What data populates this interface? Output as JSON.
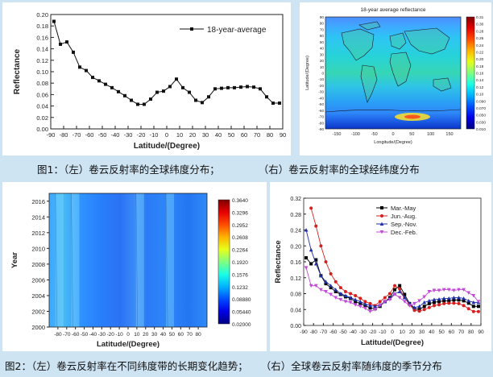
{
  "captions": {
    "fig1_left": "图1：（左）卷云反射率的全球纬度分布；",
    "fig1_right": "（右）卷云反射率的全球经纬度分布",
    "fig2_left": "图2：（左）卷云反射率在不同纬度带的长期变化趋势；",
    "fig2_right": "（右）全球卷云反射率随纬度的季节分布"
  },
  "chart_data": [
    {
      "type": "line",
      "title": "",
      "xlabel": "Latitude/(Degree)",
      "ylabel": "Reflectance",
      "xlim": [
        -90,
        90
      ],
      "ylim": [
        0.0,
        0.2
      ],
      "xticks": [
        -90,
        -80,
        -70,
        -60,
        -50,
        -40,
        -30,
        -20,
        -10,
        0,
        10,
        20,
        30,
        40,
        50,
        60,
        70,
        80,
        90
      ],
      "xtick_labels": [
        "-90",
        "-80",
        "-70",
        "-60",
        "-50",
        "-40",
        "-30",
        "-20",
        "-10",
        "0",
        "10",
        "20",
        "30",
        "40",
        "50",
        "60",
        "70",
        "80",
        "90"
      ],
      "yticks": [
        0.0,
        0.02,
        0.04,
        0.06,
        0.08,
        0.1,
        0.12,
        0.14,
        0.16,
        0.18,
        0.2
      ],
      "ytick_labels": [
        "0.00",
        "0.02",
        "0.04",
        "0.06",
        "0.08",
        "0.10",
        "0.12",
        "0.14",
        "0.16",
        "0.18",
        "0.20"
      ],
      "legend_position": "top-right",
      "series": [
        {
          "name": "18-year-average",
          "color": "#111111",
          "x": [
            -87.5,
            -82.5,
            -77.5,
            -72.5,
            -67.5,
            -62.5,
            -57.5,
            -52.5,
            -47.5,
            -42.5,
            -37.5,
            -32.5,
            -27.5,
            -22.5,
            -17.5,
            -12.5,
            -7.5,
            -2.5,
            2.5,
            7.5,
            12.5,
            17.5,
            22.5,
            27.5,
            32.5,
            37.5,
            42.5,
            47.5,
            52.5,
            57.5,
            62.5,
            67.5,
            72.5,
            77.5,
            82.5,
            87.5
          ],
          "y": [
            0.188,
            0.148,
            0.152,
            0.134,
            0.108,
            0.102,
            0.09,
            0.084,
            0.078,
            0.072,
            0.065,
            0.058,
            0.05,
            0.043,
            0.043,
            0.052,
            0.064,
            0.066,
            0.074,
            0.087,
            0.072,
            0.064,
            0.05,
            0.046,
            0.056,
            0.07,
            0.071,
            0.072,
            0.072,
            0.073,
            0.074,
            0.073,
            0.07,
            0.056,
            0.045,
            0.045
          ]
        }
      ]
    },
    {
      "type": "heatmap",
      "title": "18-year average reflectance",
      "xlabel": "Longitude/(Degree)",
      "ylabel": "Latitude/(Degree)",
      "xlim": [
        -180,
        180
      ],
      "ylim": [
        -90,
        90
      ],
      "xtick_labels": [
        "-150",
        "-100",
        "-50",
        "0",
        "50",
        "100",
        "150"
      ],
      "ytick_labels": [
        "-90",
        "-80",
        "-70",
        "-60",
        "-50",
        "-40",
        "-30",
        "-20",
        "-10",
        "0",
        "10",
        "20",
        "30",
        "40",
        "50",
        "60",
        "70",
        "80",
        "90"
      ],
      "colorbar_labels": [
        "0.31",
        "0.30",
        "0.28",
        "0.26",
        "0.24",
        "0.22",
        "0.20",
        "0.18",
        "0.16",
        "0.14",
        "0.12",
        "0.10",
        "0.090",
        "0.070",
        "0.050",
        "0.030",
        "0.010"
      ],
      "colorbar_range": [
        0.01,
        0.31
      ]
    },
    {
      "type": "heatmap",
      "title": "",
      "xlabel": "Latitude/(Degree)",
      "ylabel": "Year",
      "xlim": [
        -90,
        90
      ],
      "ylim": [
        2000,
        2017
      ],
      "xtick_labels": [
        "-80",
        "-70",
        "-60",
        "-50",
        "-40",
        "-30",
        "-20",
        "-10",
        "0",
        "10",
        "20",
        "30",
        "40",
        "50",
        "60",
        "70",
        "80"
      ],
      "ytick_labels": [
        "2000",
        "2002",
        "2004",
        "2006",
        "2008",
        "2010",
        "2012",
        "2014",
        "2016"
      ],
      "colorbar_labels": [
        "0.3640",
        "0.3296",
        "0.2952",
        "0.2608",
        "0.2264",
        "0.1920",
        "0.1576",
        "0.1232",
        "0.08880",
        "0.05440",
        "0.02000"
      ],
      "colorbar_range": [
        0.02,
        0.364
      ]
    },
    {
      "type": "line",
      "title": "",
      "xlabel": "Latitude/(Degree)",
      "ylabel": "Reflectance",
      "xlim": [
        -90,
        90
      ],
      "ylim": [
        0.0,
        0.32
      ],
      "xtick_labels": [
        "-90",
        "-80",
        "-70",
        "-60",
        "-50",
        "-40",
        "-30",
        "-20",
        "-10",
        "0",
        "10",
        "20",
        "30",
        "40",
        "50",
        "60",
        "70",
        "80",
        "90"
      ],
      "ytick_labels": [
        "0.00",
        "0.04",
        "0.08",
        "0.12",
        "0.16",
        "0.20",
        "0.24",
        "0.28",
        "0.32"
      ],
      "legend_position": "top-center",
      "series": [
        {
          "name": "Mar.-May",
          "color": "#000000",
          "marker": "square",
          "x": [
            -87.5,
            -82.5,
            -77.5,
            -72.5,
            -67.5,
            -62.5,
            -57.5,
            -52.5,
            -47.5,
            -42.5,
            -37.5,
            -32.5,
            -27.5,
            -22.5,
            -17.5,
            -12.5,
            -7.5,
            -2.5,
            2.5,
            7.5,
            12.5,
            17.5,
            22.5,
            27.5,
            32.5,
            37.5,
            42.5,
            47.5,
            52.5,
            57.5,
            62.5,
            67.5,
            72.5,
            77.5,
            82.5,
            87.5
          ],
          "y": [
            0.17,
            0.155,
            0.165,
            0.125,
            0.105,
            0.095,
            0.085,
            0.078,
            0.072,
            0.068,
            0.06,
            0.055,
            0.05,
            0.044,
            0.042,
            0.048,
            0.06,
            0.07,
            0.09,
            0.1,
            0.078,
            0.055,
            0.042,
            0.04,
            0.048,
            0.055,
            0.058,
            0.06,
            0.062,
            0.062,
            0.064,
            0.064,
            0.062,
            0.056,
            0.048,
            0.048
          ]
        },
        {
          "name": "Jun.-Aug.",
          "color": "#d62020",
          "marker": "circle",
          "x": [
            -82.5,
            -77.5,
            -72.5,
            -67.5,
            -62.5,
            -57.5,
            -52.5,
            -47.5,
            -42.5,
            -37.5,
            -32.5,
            -27.5,
            -22.5,
            -17.5,
            -12.5,
            -7.5,
            -2.5,
            2.5,
            7.5,
            12.5,
            17.5,
            22.5,
            27.5,
            32.5,
            37.5,
            42.5,
            47.5,
            52.5,
            57.5,
            62.5,
            67.5,
            72.5,
            77.5,
            82.5,
            87.5
          ],
          "y": [
            0.295,
            0.25,
            0.2,
            0.16,
            0.13,
            0.11,
            0.095,
            0.085,
            0.08,
            0.075,
            0.068,
            0.06,
            0.055,
            0.05,
            0.06,
            0.07,
            0.08,
            0.1,
            0.092,
            0.07,
            0.052,
            0.038,
            0.036,
            0.04,
            0.045,
            0.05,
            0.052,
            0.055,
            0.056,
            0.056,
            0.055,
            0.05,
            0.042,
            0.035,
            0.035
          ]
        },
        {
          "name": "Sep.-Nov.",
          "color": "#1f2fa8",
          "marker": "triangle-up",
          "x": [
            -87.5,
            -82.5,
            -77.5,
            -72.5,
            -67.5,
            -62.5,
            -57.5,
            -52.5,
            -47.5,
            -42.5,
            -37.5,
            -32.5,
            -27.5,
            -22.5,
            -17.5,
            -12.5,
            -7.5,
            -2.5,
            2.5,
            7.5,
            12.5,
            17.5,
            22.5,
            27.5,
            32.5,
            37.5,
            42.5,
            47.5,
            52.5,
            57.5,
            62.5,
            67.5,
            72.5,
            77.5,
            82.5,
            87.5
          ],
          "y": [
            0.24,
            0.19,
            0.155,
            0.125,
            0.11,
            0.1,
            0.09,
            0.08,
            0.075,
            0.07,
            0.065,
            0.06,
            0.054,
            0.05,
            0.048,
            0.052,
            0.06,
            0.068,
            0.08,
            0.085,
            0.07,
            0.055,
            0.045,
            0.048,
            0.058,
            0.062,
            0.065,
            0.066,
            0.068,
            0.068,
            0.07,
            0.07,
            0.068,
            0.062,
            0.058,
            0.058
          ]
        },
        {
          "name": "Dec.-Feb.",
          "color": "#c24bd6",
          "marker": "triangle-down",
          "x": [
            -87.5,
            -82.5,
            -77.5,
            -72.5,
            -67.5,
            -62.5,
            -57.5,
            -52.5,
            -47.5,
            -42.5,
            -37.5,
            -32.5,
            -27.5,
            -22.5,
            -17.5,
            -12.5,
            -7.5,
            -2.5,
            2.5,
            7.5,
            12.5,
            17.5,
            22.5,
            27.5,
            32.5,
            37.5,
            42.5,
            47.5,
            52.5,
            57.5,
            62.5,
            67.5,
            72.5,
            77.5,
            82.5,
            87.5
          ],
          "y": [
            0.145,
            0.1,
            0.1,
            0.09,
            0.085,
            0.078,
            0.07,
            0.065,
            0.06,
            0.058,
            0.052,
            0.048,
            0.043,
            0.035,
            0.04,
            0.05,
            0.06,
            0.065,
            0.078,
            0.07,
            0.06,
            0.05,
            0.055,
            0.062,
            0.072,
            0.085,
            0.088,
            0.088,
            0.09,
            0.09,
            0.088,
            0.09,
            0.09,
            0.082,
            0.075,
            0.06
          ]
        }
      ]
    }
  ]
}
